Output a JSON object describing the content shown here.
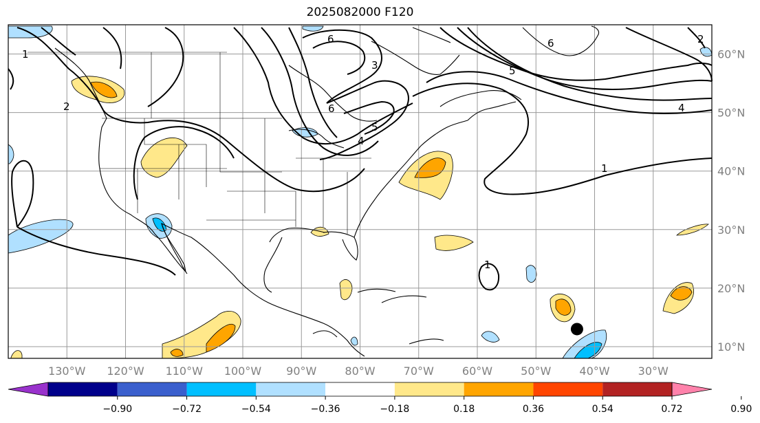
{
  "title": "2025082000 F120",
  "map": {
    "lon_range": [
      -140,
      -20
    ],
    "lat_range": [
      8,
      65
    ],
    "lon_labels": [
      "130°W",
      "120°W",
      "110°W",
      "100°W",
      "90°W",
      "80°W",
      "70°W",
      "60°W",
      "50°W",
      "40°W",
      "30°W"
    ],
    "lat_labels": [
      "60°N",
      "50°N",
      "40°N",
      "30°N",
      "20°N",
      "10°N"
    ],
    "contour_labels": [
      "1",
      "2",
      "3",
      "4",
      "5",
      "6",
      "6",
      "1",
      "1",
      "4",
      "5",
      "6",
      "2"
    ],
    "marker": {
      "lon": -43,
      "lat": 13
    }
  },
  "colorbar": {
    "ticks": [
      "−0.90",
      "−0.72",
      "−0.54",
      "−0.36",
      "−0.18",
      "0.18",
      "0.36",
      "0.54",
      "0.72",
      "0.90"
    ],
    "colors": [
      "#9932cc",
      "#00008b",
      "#3a5fcd",
      "#00bfff",
      "#b0e0ff",
      "#ffffff",
      "#ffe88a",
      "#ffa500",
      "#ff4500",
      "#b22222",
      "#ff82ab"
    ]
  }
}
